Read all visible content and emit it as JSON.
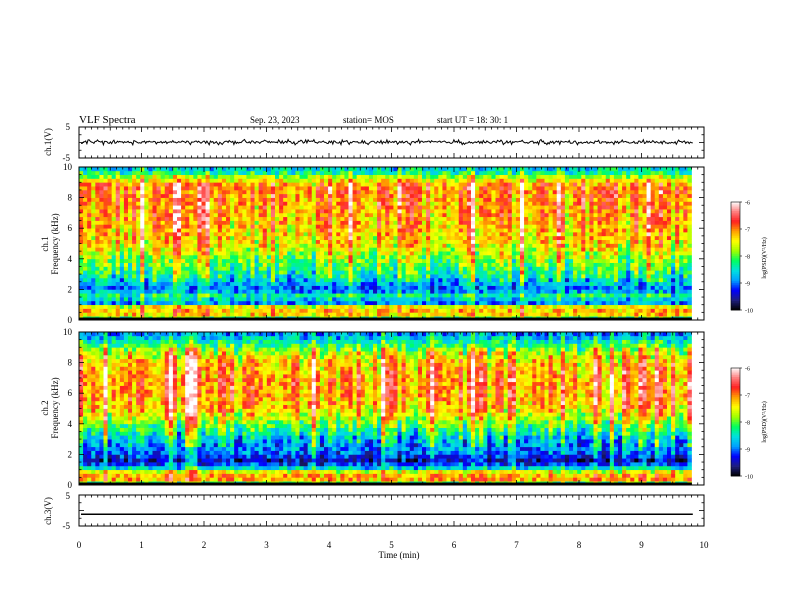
{
  "header": {
    "title": "VLF Spectra",
    "date": "Sep. 23, 2023",
    "station": "station= MOS",
    "start_ut": "start  UT =   18: 30: 1"
  },
  "colors": {
    "background": "#ffffff",
    "axis": "#000000",
    "waveform": "#000000",
    "colormap": [
      "#000000",
      "#1e1e80",
      "#0000ff",
      "#00a0ff",
      "#00e0e0",
      "#00ff60",
      "#a0ff00",
      "#ffff00",
      "#ffa000",
      "#ff2020",
      "#ff8080",
      "#ffffff"
    ]
  },
  "chart_data": [
    {
      "type": "line",
      "name": "ch1-waveform",
      "ylabel": "ch.1(V)",
      "ylim": [
        -5,
        5
      ],
      "y_ticks": [
        "5",
        "-5"
      ],
      "x_range_min": [
        0,
        10
      ],
      "trace_level_v": 0.1,
      "trace_noise_v": 0.4
    },
    {
      "type": "heatmap",
      "name": "ch1-spectrogram",
      "ylabel": "ch.1\nFrequency (kHz)",
      "ylabel_lines": [
        "ch.1",
        "Frequency (kHz)"
      ],
      "ylim_khz": [
        0,
        10
      ],
      "y_ticks": [
        "0",
        "2",
        "4",
        "6",
        "8",
        "10"
      ],
      "data_end_min": 9.8,
      "colorbar": {
        "label": "log(PSD)(V²/Hz)",
        "range": [
          -10,
          -6
        ],
        "ticks": [
          "-6",
          "-7",
          "-8",
          "-9",
          "-10"
        ]
      },
      "profile_khz": [
        0,
        0.3,
        0.8,
        1.2,
        1.5,
        2,
        3,
        4,
        5,
        6,
        7,
        8,
        8.8,
        9.3,
        9.7,
        10
      ],
      "profile_log_psd": [
        -8.5,
        -7.2,
        -6.9,
        -9.2,
        -8.0,
        -9.0,
        -8.2,
        -7.7,
        -7.2,
        -7.0,
        -6.9,
        -6.8,
        -6.7,
        -7.5,
        -8.3,
        -8.6
      ]
    },
    {
      "type": "heatmap",
      "name": "ch2-spectrogram",
      "ylabel": "ch.2\nFrequency (kHz)",
      "ylabel_lines": [
        "ch.2",
        "Frequency (kHz)"
      ],
      "ylim_khz": [
        0,
        10
      ],
      "y_ticks": [
        "0",
        "2",
        "4",
        "6",
        "8",
        "10"
      ],
      "data_end_min": 9.8,
      "colorbar": {
        "label": "log(PSD)(V²/Hz)",
        "range": [
          -10,
          -6
        ],
        "ticks": [
          "-6",
          "-7",
          "-8",
          "-9",
          "-10"
        ]
      },
      "profile_khz": [
        0,
        0.3,
        0.8,
        1.2,
        1.6,
        2,
        2.5,
        3,
        4,
        5,
        6,
        7,
        8,
        8.8,
        9.3,
        9.7,
        10
      ],
      "profile_log_psd": [
        -8.6,
        -6.9,
        -7.0,
        -8.8,
        -9.5,
        -9.0,
        -8.8,
        -8.6,
        -7.8,
        -7.0,
        -6.8,
        -6.8,
        -7.0,
        -7.6,
        -8.2,
        -8.6,
        -9.0
      ]
    },
    {
      "type": "line",
      "name": "ch3-waveform",
      "ylabel": "ch.3(V)",
      "ylim": [
        -5,
        5
      ],
      "y_ticks": [
        "5",
        "-5"
      ],
      "x_range_min": [
        0,
        10
      ],
      "trace_level_v": -1.2,
      "trace_noise_v": 0.0
    }
  ],
  "x_axis": {
    "label": "Time (min)",
    "range": [
      0,
      10
    ],
    "ticks": [
      "0",
      "1",
      "2",
      "3",
      "4",
      "5",
      "6",
      "7",
      "8",
      "9",
      "10"
    ]
  }
}
